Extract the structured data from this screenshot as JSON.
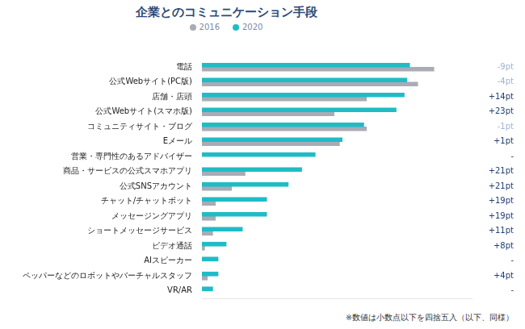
{
  "chart_data": {
    "type": "bar",
    "orientation": "horizontal",
    "title": "企業とのコミュニケーション手段",
    "categories": [
      "電話",
      "公式Webサイト(PC版)",
      "店舗・店頭",
      "公式Webサイト(スマホ版)",
      "コミュニティサイト・ブログ",
      "Eメール",
      "営業・専門性のあるアドバイザー",
      "商品・サービスの公式スマホアプリ",
      "公式SNSアカウント",
      "チャット/チャットボット",
      "メッセージングアプリ",
      "ショートメッセージサービス",
      "ビデオ通話",
      "AIスピーカー",
      "ペッパーなどのロボットやバーチャルスタッフ",
      "VR/AR"
    ],
    "series": [
      {
        "name": "2016",
        "color": "#a9abb5",
        "values": [
          86,
          80,
          61,
          49,
          61,
          51,
          null,
          16,
          11,
          5,
          5,
          4,
          1,
          null,
          2,
          null
        ]
      },
      {
        "name": "2020",
        "color": "#1fbcc6",
        "values": [
          77,
          76,
          75,
          72,
          60,
          52,
          42,
          37,
          32,
          24,
          24,
          15,
          9,
          6,
          6,
          4
        ]
      }
    ],
    "annotations": [
      "-9pt",
      "-4pt",
      "+14pt",
      "+23pt",
      "-1pt",
      "+1pt",
      "-",
      "+21pt",
      "+21pt",
      "+19pt",
      "+19pt",
      "+11pt",
      "+8pt",
      "-",
      "+4pt",
      "-"
    ],
    "note": "※数値は小数点以下を四捨五入（以下、同様）",
    "xlim": [
      0,
      100
    ],
    "grid": false,
    "legend": "top",
    "tick_labels": "y"
  }
}
